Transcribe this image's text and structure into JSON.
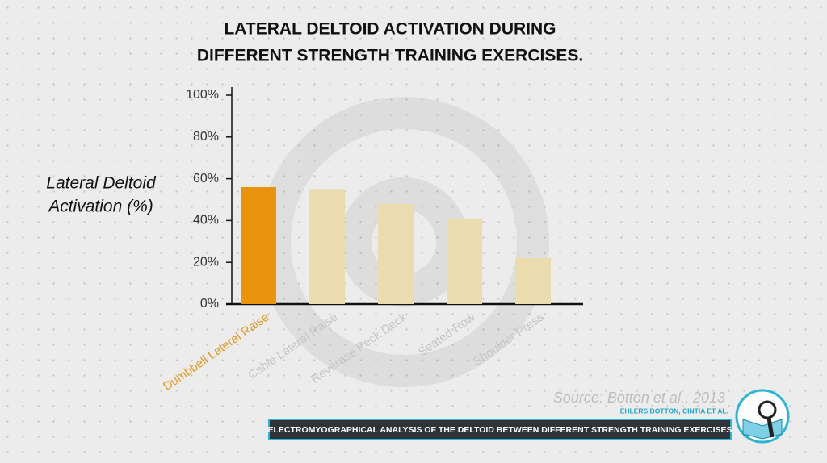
{
  "chart_data": {
    "type": "bar",
    "title": [
      "LATERAL DELTOID ACTIVATION DURING",
      "DIFFERENT STRENGTH TRAINING EXERCISES."
    ],
    "ylabel": [
      "Lateral Deltoid",
      "Activation (%)"
    ],
    "categories": [
      "Dumbbell Lateral Raise",
      "Cable Lateral Raise",
      "Reverese Peck Deck",
      "Seated Row",
      "Shoulder Press"
    ],
    "values": [
      56,
      55,
      48,
      41,
      22
    ],
    "colors": [
      "#e8940c",
      "#ebdcb0",
      "#ebdcb0",
      "#ebdcb0",
      "#ebdcb0"
    ],
    "label_colors": [
      "#e09a22",
      "#c6c6c6",
      "#c6c6c6",
      "#c6c6c6",
      "#c6c6c6"
    ],
    "ylim": [
      0,
      100
    ],
    "yticks": [
      {
        "value": 0,
        "label": "0%"
      },
      {
        "value": 20,
        "label": "20%"
      },
      {
        "value": 40,
        "label": "40%"
      },
      {
        "value": 60,
        "label": "60%"
      },
      {
        "value": 80,
        "label": "80%"
      },
      {
        "value": 100,
        "label": "100%"
      }
    ],
    "source": "Source: Botton et al., 2013"
  },
  "banner": {
    "authors": "EHLERS BOTTON, CINTIA ET AL.",
    "title": "ELECTROMYOGRAPHICAL ANALYSIS OF THE DELTOID BETWEEN DIFFERENT STRENGTH TRAINING EXERCISES"
  }
}
